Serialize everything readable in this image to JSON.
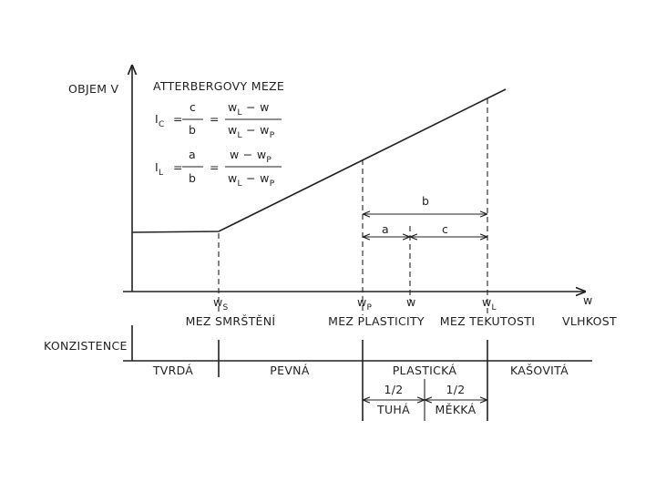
{
  "axes": {
    "y_label": "OBJEM V",
    "x_symbol": "w",
    "x_label": "VLHKOST"
  },
  "formula": {
    "title": "ATTERBERGOVY MEZE",
    "ic": {
      "lhs": {
        "main": "I",
        "sub": "C"
      },
      "eq1": "=",
      "num1": "c",
      "den1": "b",
      "eq2": "=",
      "num2": [
        {
          "main": "w",
          "sub": "L"
        },
        {
          "main": " − w"
        }
      ],
      "den2": [
        {
          "main": "w",
          "sub": "L"
        },
        {
          "main": " − w",
          "sub": "P"
        }
      ]
    },
    "il": {
      "lhs": {
        "main": "I",
        "sub": "L"
      },
      "eq1": "=",
      "num1": "a",
      "den1": "b",
      "eq2": "=",
      "num2": [
        {
          "main": "w"
        },
        {
          "main": " − w",
          "sub": "P"
        }
      ],
      "den2": [
        {
          "main": "w",
          "sub": "L"
        },
        {
          "main": " − w",
          "sub": "P"
        }
      ]
    }
  },
  "dimensions": {
    "b": "b",
    "a": "a",
    "c": "c"
  },
  "limits": [
    {
      "symbol": {
        "main": "w",
        "sub": "S"
      },
      "label": "MEZ SMRŠTĚNÍ"
    },
    {
      "symbol": {
        "main": "w",
        "sub": "P"
      },
      "label": "MEZ PLASTICITY"
    },
    {
      "symbol": {
        "main": "w"
      }
    },
    {
      "symbol": {
        "main": "w",
        "sub": "L"
      },
      "label": "MEZ TEKUTOSTI"
    }
  ],
  "consistency": {
    "label": "KONZISTENCE",
    "states": [
      "TVRDÁ",
      "PEVNÁ",
      "PLASTICKÁ",
      "KAŠOVITÁ"
    ],
    "plastic_split": [
      {
        "fraction": "1/2",
        "label": "TUHÁ"
      },
      {
        "fraction": "1/2",
        "label": "MĚKKÁ"
      }
    ]
  }
}
